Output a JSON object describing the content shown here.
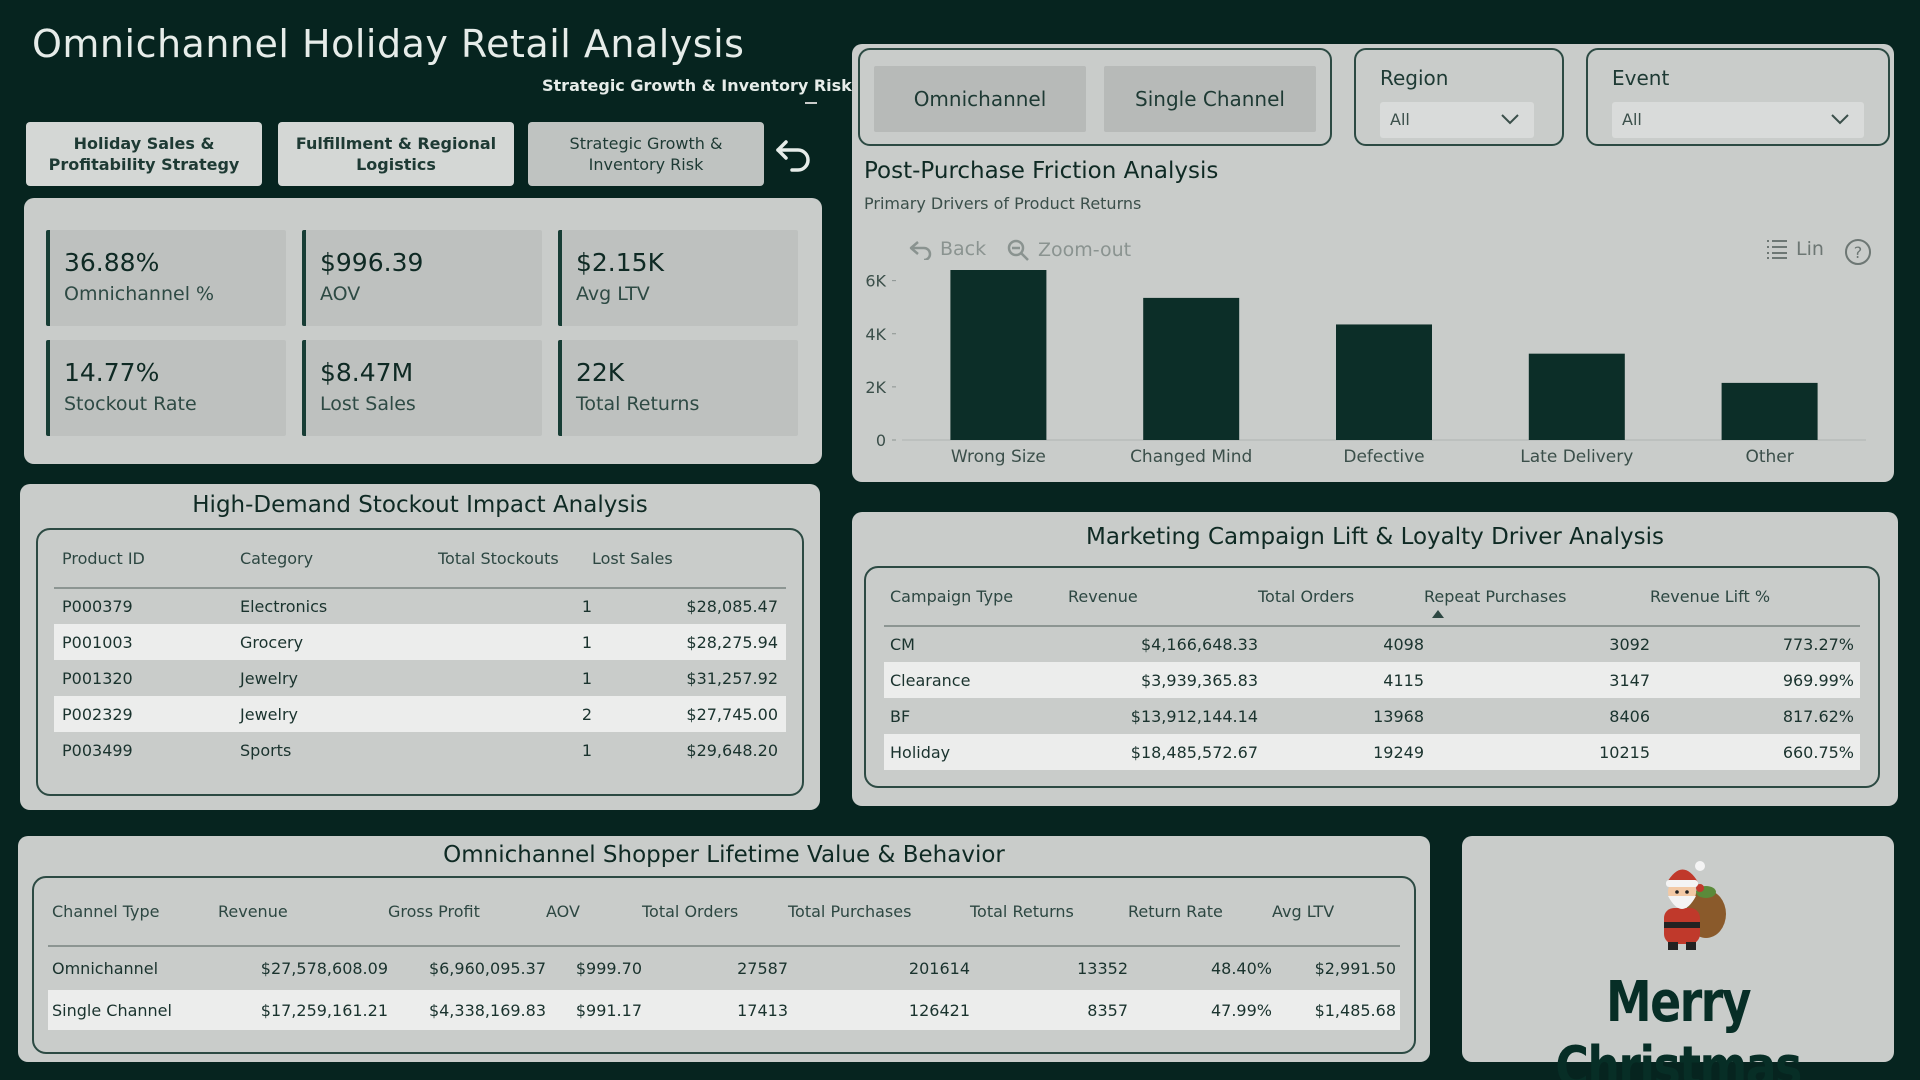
{
  "header": {
    "title": "Omnichannel Holiday Retail Analysis",
    "subtitle": "Strategic Growth & Inventory Risk"
  },
  "nav": {
    "buttons": [
      {
        "label": "Holiday Sales & Profitability Strategy"
      },
      {
        "label": "Fulfillment & Regional Logistics"
      },
      {
        "label": "Strategic Growth & Inventory Risk"
      }
    ],
    "back_icon": "undo-arrow-icon"
  },
  "kpis": [
    {
      "value": "36.88%",
      "label": "Omnichannel %"
    },
    {
      "value": "$996.39",
      "label": "AOV"
    },
    {
      "value": "$2.15K",
      "label": "Avg LTV"
    },
    {
      "value": "14.77%",
      "label": "Stockout Rate"
    },
    {
      "value": "$8.47M",
      "label": "Lost Sales"
    },
    {
      "value": "22K",
      "label": "Total Returns"
    }
  ],
  "channel_toggle": {
    "options": [
      {
        "label": "Omnichannel"
      },
      {
        "label": "Single Channel"
      }
    ]
  },
  "filters": {
    "region": {
      "label": "Region",
      "value": "All"
    },
    "event": {
      "label": "Event",
      "value": "All"
    }
  },
  "chart_panel": {
    "title": "Post-Purchase Friction Analysis",
    "subtitle": "Primary Drivers of Product Returns",
    "tools": {
      "back": "Back",
      "zoom_out": "Zoom-out",
      "lin": "Lin"
    }
  },
  "chart_data": {
    "type": "bar",
    "categories": [
      "Wrong Size",
      "Changed Mind",
      "Defective",
      "Late Delivery",
      "Other"
    ],
    "values": [
      6400,
      5350,
      4350,
      3250,
      2150
    ],
    "title": "Post-Purchase Friction Analysis",
    "subtitle": "Primary Drivers of Product Returns",
    "ylim": [
      0,
      6400
    ],
    "yticks": [
      "0",
      "2K",
      "4K",
      "6K"
    ],
    "ytick_values": [
      0,
      2000,
      4000,
      6000
    ],
    "bar_color": "#0c2e28"
  },
  "stockout": {
    "title": "High-Demand Stockout Impact Analysis",
    "columns": [
      "Product ID",
      "Category",
      "Total Stockouts",
      "Lost Sales"
    ],
    "rows": [
      [
        "P000379",
        "Electronics",
        "1",
        "$28,085.47"
      ],
      [
        "P001003",
        "Grocery",
        "1",
        "$28,275.94"
      ],
      [
        "P001320",
        "Jewelry",
        "1",
        "$31,257.92"
      ],
      [
        "P002329",
        "Jewelry",
        "2",
        "$27,745.00"
      ],
      [
        "P003499",
        "Sports",
        "1",
        "$29,648.20"
      ]
    ]
  },
  "marketing": {
    "title": "Marketing Campaign Lift & Loyalty Driver Analysis",
    "columns": [
      "Campaign Type",
      "Revenue",
      "Total Orders",
      "Repeat Purchases",
      "Revenue Lift %"
    ],
    "rows": [
      [
        "CM",
        "$4,166,648.33",
        "4098",
        "3092",
        "773.27%"
      ],
      [
        "Clearance",
        "$3,939,365.83",
        "4115",
        "3147",
        "969.99%"
      ],
      [
        "BF",
        "$13,912,144.14",
        "13968",
        "8406",
        "817.62%"
      ],
      [
        "Holiday",
        "$18,485,572.67",
        "19249",
        "10215",
        "660.75%"
      ]
    ]
  },
  "ltv": {
    "title": "Omnichannel Shopper Lifetime Value & Behavior",
    "columns": [
      "Channel Type",
      "Revenue",
      "Gross Profit",
      "AOV",
      "Total Orders",
      "Total Purchases",
      "Total Returns",
      "Return Rate",
      "Avg LTV"
    ],
    "rows": [
      [
        "Omnichannel",
        "$27,578,608.09",
        "$6,960,095.37",
        "$999.70",
        "27587",
        "201614",
        "13352",
        "48.40%",
        "$2,991.50"
      ],
      [
        "Single Channel",
        "$17,259,161.21",
        "$4,338,169.83",
        "$991.17",
        "17413",
        "126421",
        "8357",
        "47.99%",
        "$1,485.68"
      ]
    ]
  },
  "xmas": {
    "text": "Merry Christmas",
    "icon": "santa-claus-icon"
  },
  "colors": {
    "background": "#06241f",
    "panel": "#c9ccca",
    "bar": "#0c2e28"
  }
}
